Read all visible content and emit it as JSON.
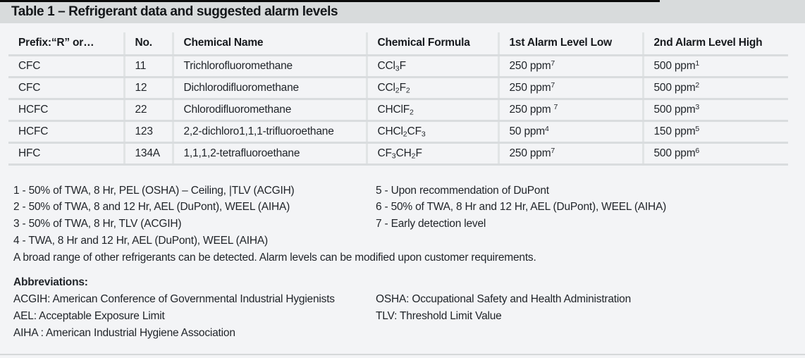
{
  "title": "Table 1 – Refrigerant data and suggested alarm levels",
  "table": {
    "columns": [
      "Prefix:“R” or…",
      "No.",
      "Chemical Name",
      "Chemical Formula",
      "1st Alarm Level Low",
      "2nd Alarm Level High"
    ],
    "rows": [
      [
        "CFC",
        "11",
        "Trichlorofluoromethane",
        "CCl₃F",
        "250 ppm⁷",
        "500 ppm¹"
      ],
      [
        "CFC",
        "12",
        "Dichlorodifluoromethane",
        "CCl₂F₂",
        "250 ppm⁷",
        "500 ppm²"
      ],
      [
        "HCFC",
        "22",
        "Chlorodifluoromethane",
        "CHClF₂",
        "250 ppm ⁷",
        "500 ppm³"
      ],
      [
        "HCFC",
        "123",
        "2,2-dichloro1,1,1-trifluoroethane",
        "CHCl₂CF₃",
        "50 ppm⁴",
        "150 ppm⁵"
      ],
      [
        "HFC",
        "134A",
        "1,1,1,2-tetrafluoroethane",
        "CF₃CH₂F",
        "250 ppm⁷",
        "500 ppm⁶"
      ]
    ]
  },
  "footnotes": {
    "left": [
      "1 - 50% of TWA, 8 Hr, PEL (OSHA) – Ceiling, |TLV (ACGIH)",
      "2 - 50% of TWA, 8 and 12 Hr, AEL (DuPont), WEEL (AIHA)",
      "3 - 50% of TWA, 8 Hr, TLV (ACGIH)",
      "4 - TWA, 8 Hr and 12 Hr, AEL (DuPont), WEEL (AIHA)"
    ],
    "right": [
      "5 - Upon recommendation of DuPont",
      "6 - 50% of TWA, 8 Hr and 12 Hr, AEL (DuPont), WEEL (AIHA)",
      "7 - Early detection level"
    ]
  },
  "note": "A broad range of other refrigerants can be detected. Alarm levels can be modified upon customer requirements.",
  "abbreviations": {
    "heading": "Abbreviations:",
    "left": [
      "ACGIH: American Conference of Governmental Industrial Hygienists",
      "AEL: Acceptable Exposure Limit",
      "AIHA : American Industrial Hygiene Association"
    ],
    "right": [
      "OSHA: Occupational Safety and Health Administration",
      "TLV: Threshold Limit Value"
    ]
  },
  "colors": {
    "page_bg": "#f3f4f6",
    "title_band": "#d8dbdc",
    "top_strip": "#0b0b0b",
    "row_divider": "#d9dcde",
    "column_divider": "#e1e4e5",
    "text": "#1f2328"
  }
}
